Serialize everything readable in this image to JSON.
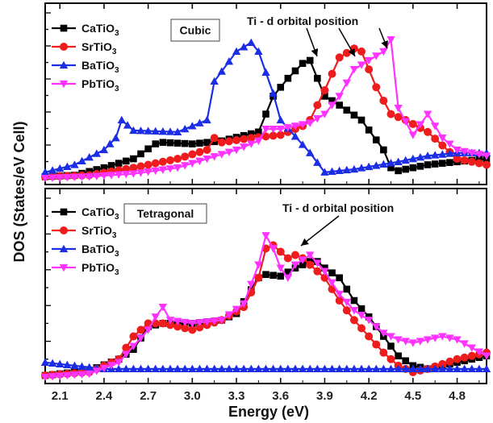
{
  "chart_data": {
    "type": "line",
    "xlabel": "Energy (eV)",
    "ylabel": "DOS (States/eV Cell)",
    "xlim": [
      2.0,
      5.0
    ],
    "x_ticks": [
      "2.1",
      "2.4",
      "2.7",
      "3.0",
      "3.3",
      "3.6",
      "3.9",
      "4.2",
      "4.5",
      "4.8"
    ],
    "x_tick_values": [
      2.1,
      2.4,
      2.7,
      3.0,
      3.3,
      3.6,
      3.9,
      4.2,
      4.5,
      4.8
    ],
    "colors": {
      "CaTiO3": "#000000",
      "SrTiO3": "#ee1c1c",
      "BaTiO3": "#1c2de6",
      "PbTiO3": "#ff33ff"
    },
    "panels": [
      {
        "box_label": "Cubic",
        "annotation": "Ti - d orbital position",
        "ylim": [
          0,
          100
        ],
        "series": [
          {
            "name": "CaTiO",
            "sub": "3",
            "key": "CaTiO3",
            "marker": "square",
            "x": [
              2.0,
              2.2,
              2.4,
              2.6,
              2.75,
              2.8,
              3.0,
              3.2,
              3.45,
              3.55,
              3.65,
              3.75,
              3.8,
              3.85,
              3.9,
              4.0,
              4.15,
              4.3,
              4.35,
              4.4,
              4.6,
              4.8,
              5.0
            ],
            "y": [
              2,
              3,
              8,
              14,
              24,
              25,
              24,
              26,
              32,
              56,
              68,
              78,
              80,
              68,
              56,
              50,
              40,
              20,
              8,
              6,
              10,
              12,
              14
            ]
          },
          {
            "name": "SrTiO",
            "sub": "3",
            "key": "SrTiO3",
            "marker": "circle",
            "x": [
              2.0,
              2.3,
              2.6,
              2.9,
              3.1,
              3.15,
              3.2,
              3.4,
              3.6,
              3.7,
              3.75,
              3.8,
              3.9,
              4.0,
              4.1,
              4.15,
              4.25,
              4.35,
              4.45,
              4.6,
              4.8,
              5.0
            ],
            "y": [
              2,
              3,
              8,
              14,
              20,
              28,
              25,
              28,
              30,
              34,
              36,
              40,
              60,
              82,
              88,
              86,
              62,
              44,
              40,
              32,
              14,
              10
            ]
          },
          {
            "name": "BaTiO",
            "sub": "3",
            "key": "BaTiO3",
            "marker": "triangle-up",
            "x": [
              2.0,
              2.2,
              2.4,
              2.48,
              2.52,
              2.6,
              2.9,
              3.1,
              3.15,
              3.3,
              3.4,
              3.45,
              3.55,
              3.6,
              3.8,
              3.9,
              4.1,
              4.4,
              4.6,
              4.8,
              5.0
            ],
            "y": [
              5,
              10,
              20,
              28,
              40,
              33,
              32,
              40,
              66,
              86,
              92,
              86,
              58,
              40,
              18,
              5,
              7,
              12,
              16,
              18,
              18
            ]
          },
          {
            "name": "PbTiO",
            "sub": "3",
            "key": "PbTiO3",
            "marker": "triangle-down",
            "x": [
              2.0,
              2.3,
              2.6,
              2.9,
              3.1,
              3.3,
              3.45,
              3.5,
              3.6,
              3.8,
              3.9,
              4.0,
              4.1,
              4.2,
              4.3,
              4.35,
              4.4,
              4.5,
              4.6,
              4.7,
              4.8,
              5.0
            ],
            "y": [
              1,
              2,
              4,
              8,
              14,
              20,
              26,
              34,
              34,
              38,
              44,
              56,
              74,
              80,
              86,
              94,
              48,
              30,
              44,
              28,
              20,
              16
            ]
          }
        ]
      },
      {
        "box_label": "Tetragonal",
        "annotation": "Ti - d orbital position",
        "ylim": [
          0,
          100
        ],
        "series": [
          {
            "name": "CaTiO",
            "sub": "3",
            "key": "CaTiO3",
            "marker": "square",
            "x": [
              2.0,
              2.3,
              2.5,
              2.6,
              2.7,
              2.8,
              3.0,
              3.2,
              3.3,
              3.45,
              3.5,
              3.6,
              3.7,
              3.8,
              3.85,
              3.9,
              4.0,
              4.1,
              4.2,
              4.3,
              4.4,
              4.5,
              4.6,
              4.8,
              5.0
            ],
            "y": [
              2,
              5,
              12,
              18,
              32,
              34,
              34,
              36,
              40,
              62,
              64,
              63,
              68,
              72,
              72,
              68,
              62,
              48,
              38,
              26,
              14,
              8,
              6,
              10,
              14
            ]
          },
          {
            "name": "SrTiO",
            "sub": "3",
            "key": "SrTiO3",
            "marker": "circle",
            "x": [
              2.0,
              2.3,
              2.5,
              2.6,
              2.7,
              2.8,
              3.0,
              3.2,
              3.35,
              3.45,
              3.5,
              3.55,
              3.6,
              3.65,
              3.7,
              3.75,
              3.8,
              3.9,
              4.0,
              4.1,
              4.2,
              4.3,
              4.4,
              4.5,
              4.6,
              4.8,
              5.0
            ],
            "y": [
              2,
              4,
              12,
              26,
              34,
              34,
              30,
              36,
              44,
              62,
              80,
              82,
              78,
              74,
              76,
              74,
              70,
              62,
              48,
              36,
              26,
              16,
              8,
              4,
              6,
              12,
              16
            ]
          },
          {
            "name": "BaTiO",
            "sub": "3",
            "key": "BaTiO3",
            "marker": "triangle-up",
            "x": [
              2.0,
              2.1,
              2.2,
              2.3,
              2.4,
              2.5,
              2.6,
              2.8,
              3.0,
              3.2,
              3.4,
              3.6,
              3.8,
              4.0,
              4.2,
              4.4,
              4.6,
              4.8,
              5.0
            ],
            "y": [
              10,
              9,
              8,
              7,
              6,
              6,
              6,
              6,
              6,
              6,
              6,
              6,
              6,
              6,
              6,
              6,
              6,
              6,
              6
            ]
          },
          {
            "name": "PbTiO",
            "sub": "3",
            "key": "PbTiO3",
            "marker": "triangle-down",
            "x": [
              2.0,
              2.3,
              2.5,
              2.6,
              2.7,
              2.75,
              2.8,
              2.85,
              3.0,
              3.2,
              3.35,
              3.45,
              3.5,
              3.55,
              3.6,
              3.65,
              3.7,
              3.8,
              3.9,
              4.0,
              4.1,
              4.2,
              4.3,
              4.4,
              4.5,
              4.6,
              4.7,
              4.8,
              5.0
            ],
            "y": [
              1,
              3,
              10,
              20,
              30,
              38,
              44,
              36,
              34,
              36,
              46,
              70,
              88,
              80,
              68,
              62,
              70,
              76,
              66,
              52,
              42,
              36,
              28,
              24,
              22,
              24,
              26,
              24,
              14
            ]
          }
        ]
      }
    ]
  }
}
